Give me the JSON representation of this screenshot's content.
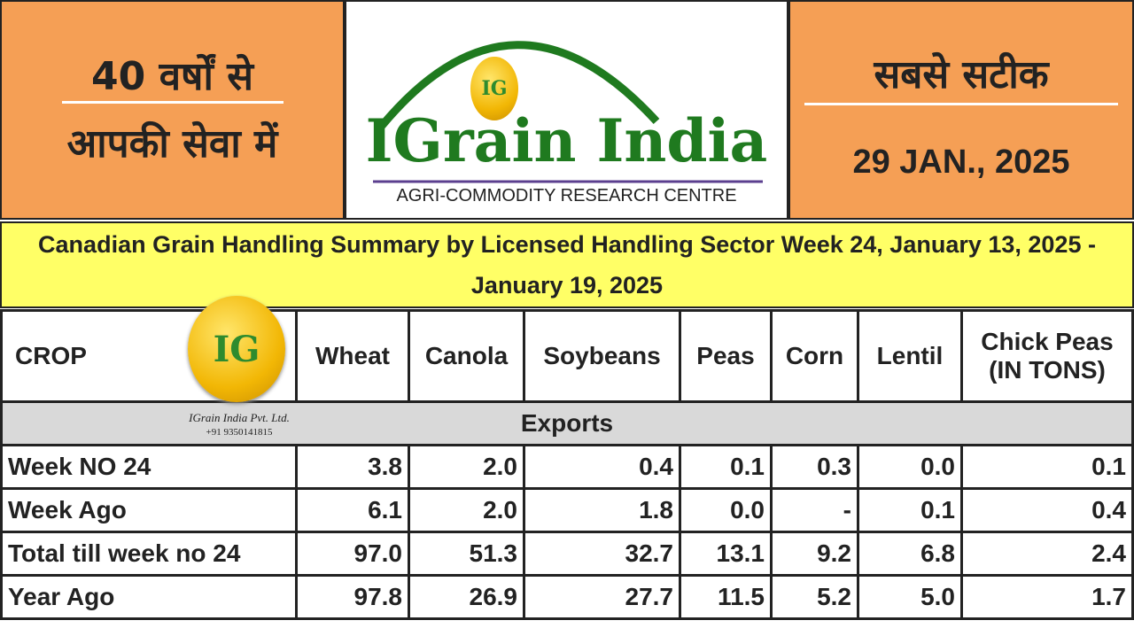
{
  "header": {
    "left": {
      "line1": "40 वर्षों से",
      "line2": "आपकी सेवा में"
    },
    "logo": {
      "mark": "IG",
      "title": "IGrain India",
      "subtitle": "AGRI-COMMODITY RESEARCH CENTRE"
    },
    "right": {
      "tagline": "सबसे सटीक",
      "date": "29 JAN., 2025"
    }
  },
  "table": {
    "title": "Canadian Grain Handling Summary by Licensed Handling Sector Week 24, January 13, 2025 - January 19, 2025",
    "columns": [
      "CROP",
      "Wheat",
      "Canola",
      "Soybeans",
      "Peas",
      "Corn",
      "Lentil",
      "Chick Peas (IN TONS)"
    ],
    "section": "Exports",
    "rows": [
      [
        "Week NO 24",
        "3.8",
        "2.0",
        "0.4",
        "0.1",
        "0.3",
        "0.0",
        "0.1"
      ],
      [
        "Week Ago",
        "6.1",
        "2.0",
        "1.8",
        "0.0",
        "-",
        "0.1",
        "0.4"
      ],
      [
        "Total till week no 24",
        "97.0",
        "51.3",
        "32.7",
        "13.1",
        "9.2",
        "6.8",
        "2.4"
      ],
      [
        "Year Ago",
        "97.8",
        "26.9",
        "27.7",
        "11.5",
        "5.2",
        "5.0",
        "1.7"
      ]
    ]
  },
  "watermark": {
    "mark": "IG",
    "company": "IGrain India Pvt. Ltd.",
    "phone": "+91 9350141815"
  }
}
